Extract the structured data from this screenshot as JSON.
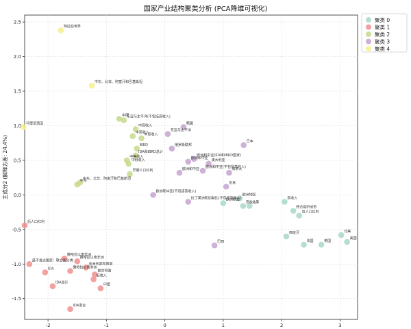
{
  "chart_data": {
    "type": "scatter",
    "title": "国家产业结构聚类分析 (PCA降维可视化)",
    "xlabel": "",
    "ylabel": "主成分2 (解释方差: 24.4%)",
    "xlim": [
      -2.4,
      3.3
    ],
    "ylim": [
      -1.8,
      2.6
    ],
    "xticks": [
      -2,
      -1,
      0,
      1,
      2,
      3
    ],
    "yticks": [
      -1.5,
      -1.0,
      -0.5,
      0.0,
      0.5,
      1.0,
      1.5,
      2.0,
      2.5
    ],
    "grid": true,
    "legend_position": "top-right",
    "colors": {
      "0": "#a8d8c8",
      "1": "#f08f8f",
      "2": "#c5d98a",
      "3": "#c5a3cf",
      "4": "#f5f08c"
    },
    "series": [
      {
        "name": "聚类 0",
        "points": [
          {
            "x": 1.0,
            "y": -0.12,
            "label": "欧洲联盟"
          },
          {
            "x": 1.28,
            "y": -0.05,
            "label": "欧洲地区"
          },
          {
            "x": 1.34,
            "y": -0.16,
            "label": "高收入"
          },
          {
            "x": 1.45,
            "y": -0.16,
            "label": "北美"
          },
          {
            "x": 2.05,
            "y": -0.1,
            "label": "高收入"
          },
          {
            "x": 2.2,
            "y": -0.23,
            "label": "经合组织成员"
          },
          {
            "x": 2.3,
            "y": -0.3,
            "label": "后人口红利"
          },
          {
            "x": 2.08,
            "y": -0.6,
            "label": "西班牙"
          },
          {
            "x": 2.38,
            "y": -0.72,
            "label": "法国"
          },
          {
            "x": 2.68,
            "y": -0.72,
            "label": "英国"
          },
          {
            "x": 3.02,
            "y": -0.58,
            "label": "北美"
          },
          {
            "x": 3.12,
            "y": -0.68,
            "label": "美国"
          }
        ]
      },
      {
        "name": "聚类 1",
        "points": [
          {
            "x": -2.4,
            "y": -0.44,
            "label": "后人口红利"
          },
          {
            "x": -2.32,
            "y": -1.0,
            "label": "最不发达国家：联合国分类"
          },
          {
            "x": -2.05,
            "y": -1.12,
            "label": "IDA"
          },
          {
            "x": -1.92,
            "y": -1.32,
            "label": "IDA总计"
          },
          {
            "x": -1.72,
            "y": -0.92,
            "label": "撒哈拉以南非洲"
          },
          {
            "x": -1.62,
            "y": -1.1,
            "label": "撒哈拉以南非洲"
          },
          {
            "x": -1.5,
            "y": -0.96,
            "label": "撒哈拉以南非洲"
          },
          {
            "x": -1.35,
            "y": -1.05,
            "label": "非洲东部和南部"
          },
          {
            "x": -1.2,
            "y": -1.15,
            "label": "重债穷国"
          },
          {
            "x": -1.22,
            "y": -1.22,
            "label": "低收入"
          },
          {
            "x": -1.1,
            "y": -1.35,
            "label": "印度"
          },
          {
            "x": -1.62,
            "y": -1.65,
            "label": "IDA混合"
          }
        ]
      },
      {
        "name": "聚类 2",
        "points": [
          {
            "x": -0.78,
            "y": 1.1,
            "label": "中国"
          },
          {
            "x": -0.7,
            "y": 1.08,
            "label": "东亚与太平洋(不包括高收入)"
          },
          {
            "x": -0.5,
            "y": 0.95,
            "label": "中高收入"
          },
          {
            "x": -0.55,
            "y": 0.85,
            "label": "中高收入"
          },
          {
            "x": -0.4,
            "y": 0.82,
            "label": "中高收入"
          },
          {
            "x": -0.48,
            "y": 0.67,
            "label": "IBRD"
          },
          {
            "x": -0.5,
            "y": 0.57,
            "label": "IDA和IBRD总计"
          },
          {
            "x": -0.62,
            "y": 0.45,
            "label": "中低收入"
          },
          {
            "x": -0.65,
            "y": 0.5,
            "label": "中等收入"
          },
          {
            "x": -0.6,
            "y": 0.3,
            "label": "早期人口红利"
          },
          {
            "x": -1.45,
            "y": 0.18,
            "label": "中东、北非、阿富汗和巴基斯坦"
          },
          {
            "x": -1.5,
            "y": 0.15,
            "label": "中东"
          }
        ]
      },
      {
        "name": "聚类 3",
        "points": [
          {
            "x": 0.32,
            "y": 0.98,
            "label": "韩国"
          },
          {
            "x": 0.05,
            "y": 0.88,
            "label": "东亚与太平洋"
          },
          {
            "x": 0.12,
            "y": 0.67,
            "label": "俄罗斯联邦"
          },
          {
            "x": 0.4,
            "y": 0.48,
            "label": "欧洲和中亚"
          },
          {
            "x": 0.5,
            "y": 0.52,
            "label": "欧洲和中亚(IDA和IBRD国家)"
          },
          {
            "x": 0.75,
            "y": 0.45,
            "label": "澳大利亚"
          },
          {
            "x": 0.65,
            "y": 0.35,
            "label": "欧洲和中亚(不包括高收入)"
          },
          {
            "x": 0.25,
            "y": 0.32,
            "label": "欧洲和中亚"
          },
          {
            "x": 1.1,
            "y": 0.32,
            "label": "加拿大"
          },
          {
            "x": 1.35,
            "y": 0.72,
            "label": "日本"
          },
          {
            "x": 1.05,
            "y": 0.12,
            "label": "世界"
          },
          {
            "x": -0.2,
            "y": 0.0,
            "label": "欧洲和中亚(不包括高收入)"
          },
          {
            "x": 0.4,
            "y": -0.1,
            "label": "拉丁美洲和加勒比(不包括高收入)"
          },
          {
            "x": 0.85,
            "y": -0.73,
            "label": "巴西"
          }
        ]
      },
      {
        "name": "聚类 4",
        "points": [
          {
            "x": -1.78,
            "y": 2.38,
            "label": "阿拉伯世界"
          },
          {
            "x": -1.25,
            "y": 1.58,
            "label": "中东、北非、阿富汗和巴基斯坦"
          },
          {
            "x": -2.42,
            "y": 0.98,
            "label": "印度尼西亚"
          }
        ]
      }
    ]
  }
}
